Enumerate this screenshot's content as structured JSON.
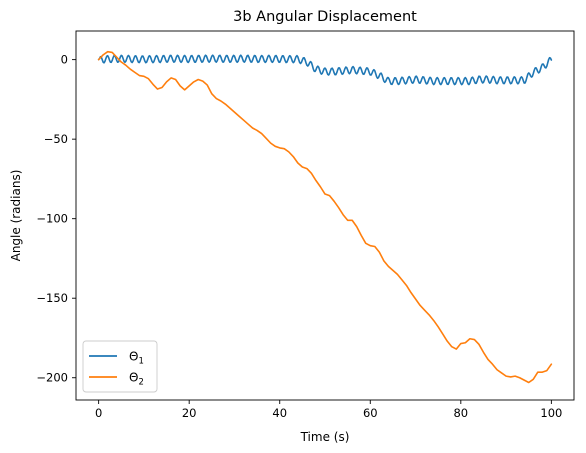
{
  "chart_data": {
    "type": "line",
    "title": "3b Angular Displacement",
    "xlabel": "Time (s)",
    "ylabel": "Angle (radians)",
    "xlim": [
      -5,
      105
    ],
    "ylim": [
      -214,
      18
    ],
    "xticks": [
      0,
      20,
      40,
      60,
      80,
      100
    ],
    "yticks": [
      0,
      -50,
      -100,
      -150,
      -200
    ],
    "xtick_labels": [
      "0",
      "20",
      "40",
      "60",
      "80",
      "100"
    ],
    "ytick_labels": [
      "0",
      "−50",
      "−100",
      "−150",
      "−200"
    ],
    "grid": false,
    "legend_position": "lower-left",
    "series": [
      {
        "name": "Θ1",
        "label_base": "Θ",
        "label_sub": "1",
        "color": "#1f77b4",
        "x": [
          0,
          2,
          4,
          6,
          8,
          10,
          12,
          14,
          16,
          18,
          20,
          22,
          24,
          26,
          28,
          30,
          32,
          34,
          36,
          38,
          40,
          42,
          44,
          46,
          48,
          50,
          52,
          54,
          56,
          58,
          60,
          62,
          64,
          66,
          68,
          70,
          72,
          74,
          76,
          78,
          80,
          82,
          84,
          86,
          88,
          90,
          92,
          94,
          96,
          98,
          100
        ],
        "values": [
          0,
          0.3,
          0.5,
          0.5,
          0.3,
          0.2,
          0.3,
          0.4,
          0.6,
          0.5,
          0.4,
          0.5,
          0.6,
          0.6,
          0.5,
          0.5,
          0.6,
          0.5,
          0.4,
          0.5,
          0.4,
          0.3,
          0.3,
          -1.5,
          -6,
          -7.5,
          -7.5,
          -7,
          -6.5,
          -7,
          -7.5,
          -10,
          -13.5,
          -13.5,
          -13,
          -12.5,
          -13,
          -13.5,
          -13.5,
          -13.5,
          -13.5,
          -13.5,
          -12.5,
          -12.5,
          -13,
          -13,
          -13,
          -13,
          -8,
          -5,
          0
        ],
        "osc": 2.2
      },
      {
        "name": "Θ2",
        "label_base": "Θ",
        "label_sub": "2",
        "color": "#ff7f0e",
        "x": [
          0,
          1,
          2,
          3,
          4,
          5,
          6,
          7,
          8,
          9,
          10,
          11,
          12,
          13,
          14,
          15,
          16,
          17,
          18,
          19,
          20,
          21,
          22,
          23,
          24,
          25,
          26,
          27,
          28,
          29,
          30,
          31,
          32,
          33,
          34,
          35,
          36,
          37,
          38,
          39,
          40,
          41,
          42,
          43,
          44,
          45,
          46,
          47,
          48,
          49,
          50,
          51,
          52,
          53,
          54,
          55,
          56,
          57,
          58,
          59,
          60,
          61,
          62,
          63,
          64,
          65,
          66,
          67,
          68,
          69,
          70,
          71,
          72,
          73,
          74,
          75,
          76,
          77,
          78,
          79,
          80,
          81,
          82,
          83,
          84,
          85,
          86,
          87,
          88,
          89,
          90,
          91,
          92,
          93,
          94,
          95,
          96,
          97,
          98,
          99,
          100
        ],
        "values": [
          0,
          3,
          5,
          4.5,
          1.5,
          -1.5,
          -3.5,
          -6,
          -8,
          -10,
          -10.5,
          -12,
          -15.5,
          -18.5,
          -17.5,
          -14,
          -11.5,
          -12.5,
          -16.5,
          -19,
          -16.5,
          -14,
          -12.5,
          -13.5,
          -16,
          -21.5,
          -24.5,
          -26,
          -28,
          -30.5,
          -33,
          -35.5,
          -38,
          -40.5,
          -43,
          -44.5,
          -46.5,
          -49.5,
          -52.5,
          -54.5,
          -55.5,
          -56,
          -58,
          -61,
          -65,
          -67.5,
          -68.5,
          -71.5,
          -76,
          -80,
          -84.5,
          -85.5,
          -89,
          -93,
          -97.5,
          -101,
          -101,
          -105,
          -110.5,
          -115.5,
          -117,
          -117.5,
          -121,
          -126.5,
          -130,
          -132.5,
          -135,
          -138.5,
          -142,
          -146.5,
          -150.5,
          -154.5,
          -157.5,
          -160.5,
          -164,
          -168,
          -172.5,
          -177,
          -180.5,
          -182,
          -178.5,
          -178,
          -175.5,
          -176,
          -179,
          -184,
          -188.5,
          -191.5,
          -195,
          -197,
          -199,
          -199.5,
          -199,
          -200,
          -201.5,
          -203,
          -201,
          -196.5,
          -196.5,
          -195.5,
          -191.5
        ]
      }
    ]
  }
}
